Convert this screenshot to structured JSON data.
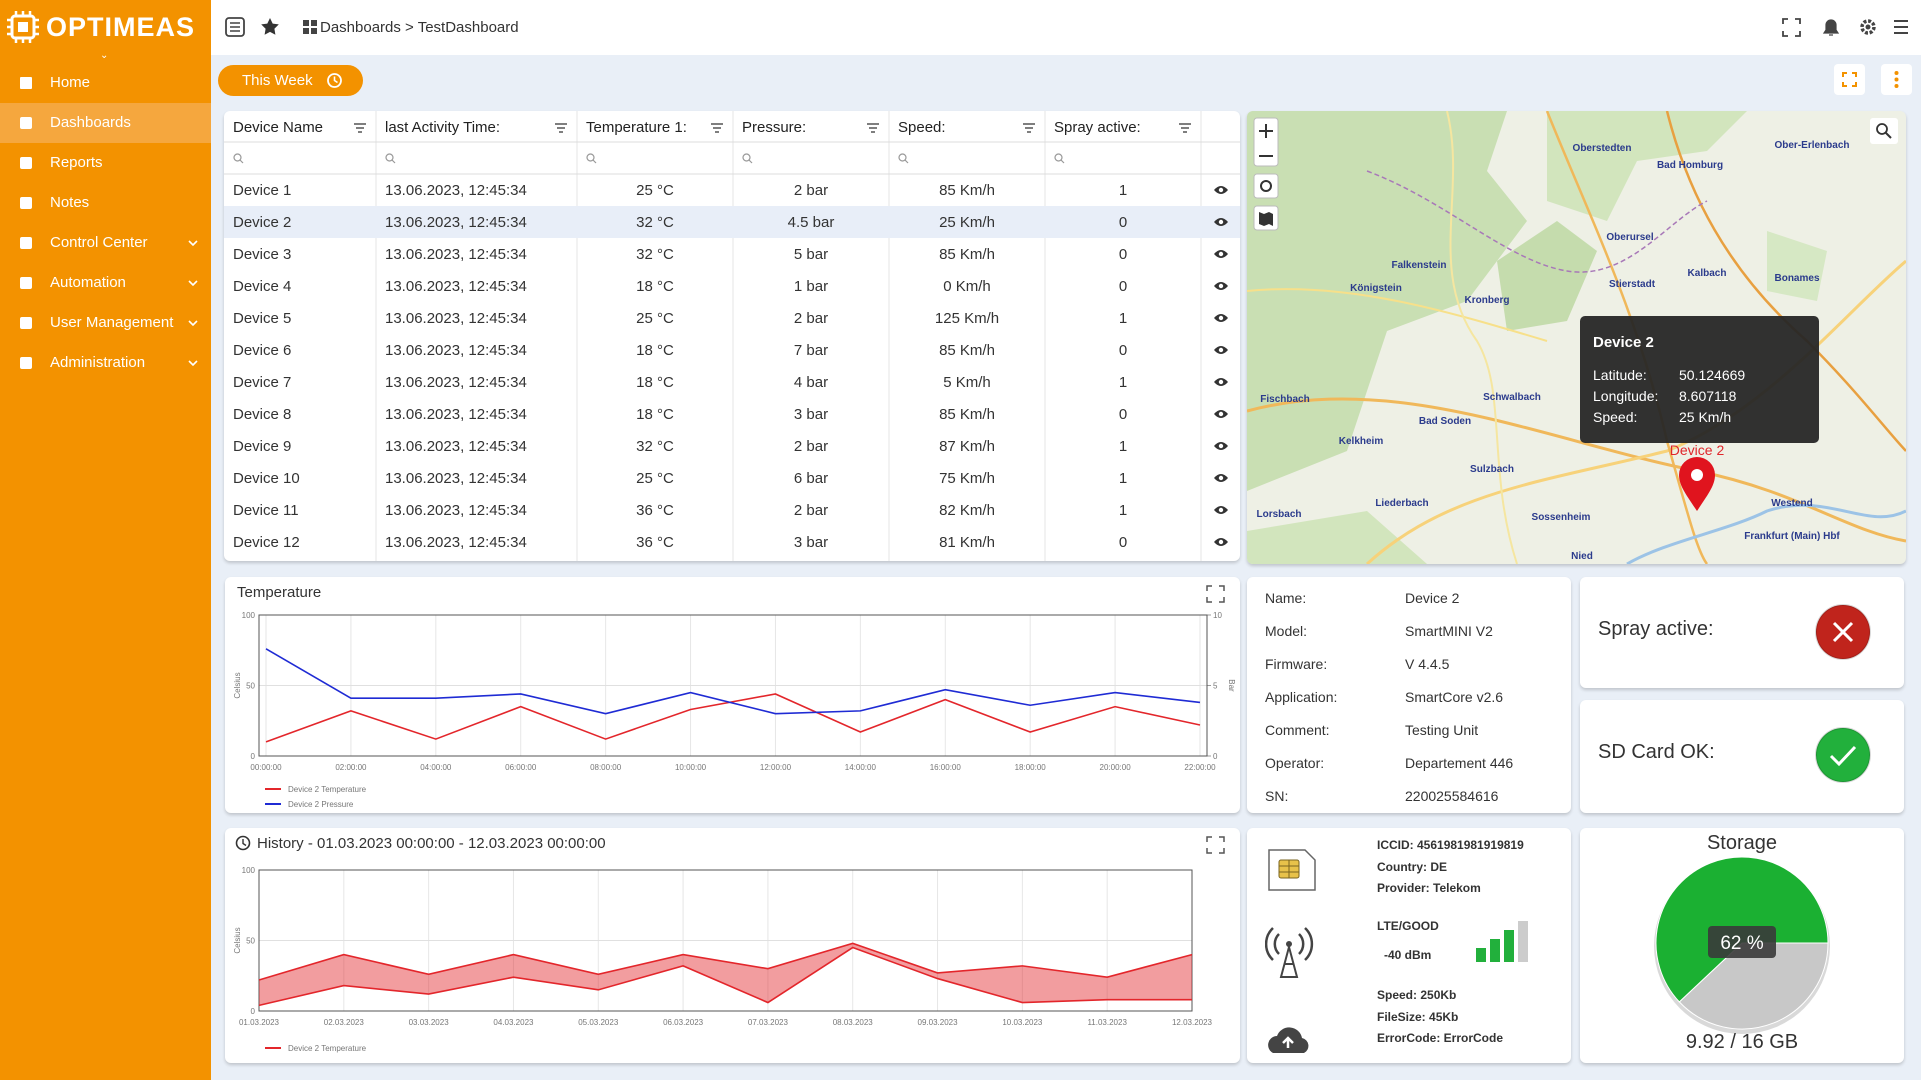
{
  "sidebar": {
    "logo": "OPTIMEAS",
    "menu": [
      "Home",
      "Dashboards",
      "Reports",
      "Notes",
      "Control Center",
      "Automation",
      "User Management",
      "Administration"
    ]
  },
  "topbar": {
    "breadcrumb": "Dashboards > TestDashboard"
  },
  "toolbar": {
    "period": "This Week"
  },
  "table": {
    "columns": [
      "Device Name",
      "last Activity Time:",
      "Temperature 1:",
      "Pressure:",
      "Speed:",
      "Spray active:"
    ],
    "rows": [
      [
        "Device 1",
        "13.06.2023, 12:45:34",
        "25 °C",
        "2 bar",
        "85 Km/h",
        "1"
      ],
      [
        "Device 2",
        "13.06.2023, 12:45:34",
        "32 °C",
        "4.5 bar",
        "25 Km/h",
        "0"
      ],
      [
        "Device 3",
        "13.06.2023, 12:45:34",
        "32 °C",
        "5 bar",
        "85 Km/h",
        "0"
      ],
      [
        "Device 4",
        "13.06.2023, 12:45:34",
        "18 °C",
        "1 bar",
        "0 Km/h",
        "0"
      ],
      [
        "Device 5",
        "13.06.2023, 12:45:34",
        "25 °C",
        "2 bar",
        "125 Km/h",
        "1"
      ],
      [
        "Device 6",
        "13.06.2023, 12:45:34",
        "18 °C",
        "7 bar",
        "85 Km/h",
        "0"
      ],
      [
        "Device 7",
        "13.06.2023, 12:45:34",
        "18 °C",
        "4 bar",
        "5 Km/h",
        "1"
      ],
      [
        "Device 8",
        "13.06.2023, 12:45:34",
        "18 °C",
        "3 bar",
        "85 Km/h",
        "0"
      ],
      [
        "Device 9",
        "13.06.2023, 12:45:34",
        "32 °C",
        "2 bar",
        "87 Km/h",
        "1"
      ],
      [
        "Device 10",
        "13.06.2023, 12:45:34",
        "25 °C",
        "6 bar",
        "75 Km/h",
        "1"
      ],
      [
        "Device 11",
        "13.06.2023, 12:45:34",
        "36 °C",
        "2 bar",
        "82 Km/h",
        "1"
      ],
      [
        "Device 12",
        "13.06.2023, 12:45:34",
        "36 °C",
        "3 bar",
        "81 Km/h",
        "0"
      ]
    ]
  },
  "map": {
    "places": [
      "Oberstedten",
      "Bad Homburg",
      "Ober-Erlenbach",
      "Oberursel",
      "Falkenstein",
      "Königstein",
      "Kronberg",
      "Stierstadt",
      "Kalbach",
      "Bonames",
      "Schwalbach",
      "Bad Soden",
      "Kelkheim",
      "Fischbach",
      "Sulzbach",
      "Liederbach",
      "Sossenheim",
      "Lorsbach",
      "Westend",
      "Frankfurt (Main) Hbf",
      "Nied"
    ],
    "marker_label": "Device 2",
    "tooltip": {
      "title": "Device 2",
      "rows": [
        [
          "Latitude:",
          "50.124669"
        ],
        [
          "Longitude:",
          "8.607118"
        ],
        [
          "Speed:",
          "25 Km/h"
        ]
      ]
    }
  },
  "chart_data": [
    {
      "type": "line",
      "title": "Temperature",
      "categories": [
        "00:00:00",
        "02:00:00",
        "04:00:00",
        "06:00:00",
        "08:00:00",
        "10:00:00",
        "12:00:00",
        "14:00:00",
        "16:00:00",
        "18:00:00",
        "20:00:00",
        "22:00:00"
      ],
      "ylabel": "Celsius",
      "y2label": "Bar",
      "ylim": [
        0,
        100
      ],
      "yticks": [
        0,
        50,
        100
      ],
      "y2lim": [
        0,
        10
      ],
      "y2ticks": [
        0,
        5,
        10
      ],
      "grid": true,
      "series": [
        {
          "name": "Device 2 Temperature",
          "color": "#e3262b",
          "values": [
            10,
            32,
            12,
            35,
            12,
            33,
            44,
            17,
            40,
            17,
            35,
            22
          ]
        },
        {
          "name": "Device 2 Pressure",
          "color": "#1f2bd4",
          "axis": "y2",
          "values": [
            7.6,
            4.1,
            4.1,
            4.4,
            3.0,
            4.5,
            3.0,
            3.2,
            4.7,
            3.6,
            4.5,
            3.8
          ]
        }
      ]
    },
    {
      "type": "range",
      "title": "History - 01.03.2023 00:00:00 - 12.03.2023 00:00:00",
      "categories": [
        "01.03.2023",
        "02.03.2023",
        "03.03.2023",
        "04.03.2023",
        "05.03.2023",
        "06.03.2023",
        "07.03.2023",
        "08.03.2023",
        "09.03.2023",
        "10.03.2023",
        "11.03.2023",
        "12.03.2023"
      ],
      "ylabel": "Celsius",
      "ylim": [
        0,
        100
      ],
      "yticks": [
        0,
        50,
        100
      ],
      "grid": true,
      "series": [
        {
          "name": "Device 2 Temperature",
          "color": "#e3262b",
          "high": [
            22,
            40,
            26,
            40,
            26,
            40,
            30,
            48,
            27,
            32,
            24,
            40
          ],
          "low": [
            4,
            18,
            12,
            24,
            15,
            32,
            6,
            45,
            23,
            6,
            8,
            8
          ]
        }
      ]
    }
  ],
  "device_info": [
    [
      "Name:",
      "Device 2"
    ],
    [
      "Model:",
      "SmartMINI V2"
    ],
    [
      "Firmware:",
      "V 4.4.5"
    ],
    [
      "Application:",
      "SmartCore v2.6"
    ],
    [
      "Comment:",
      "Testing Unit"
    ],
    [
      "Operator:",
      "Departement 446"
    ],
    [
      "SN:",
      "220025584616"
    ]
  ],
  "status": [
    {
      "label": "Spray active:",
      "ok": false
    },
    {
      "label": "SD Card OK:",
      "ok": true
    }
  ],
  "sim": {
    "iccid": "ICCID: 4561981981919819",
    "country": "Country: DE",
    "provider": "Provider: Telekom",
    "network": "LTE/GOOD",
    "dbm": "-40 dBm",
    "signal": {
      "level": 3,
      "max": 4
    },
    "speed": "Speed: 250Kb",
    "filesize": "FileSize: 45Kb",
    "error": "ErrorCode: ErrorCode"
  },
  "storage": {
    "title": "Storage",
    "percent": {
      "value": 62,
      "label": "62 %"
    },
    "used_label": "9.92 / 16 GB"
  }
}
